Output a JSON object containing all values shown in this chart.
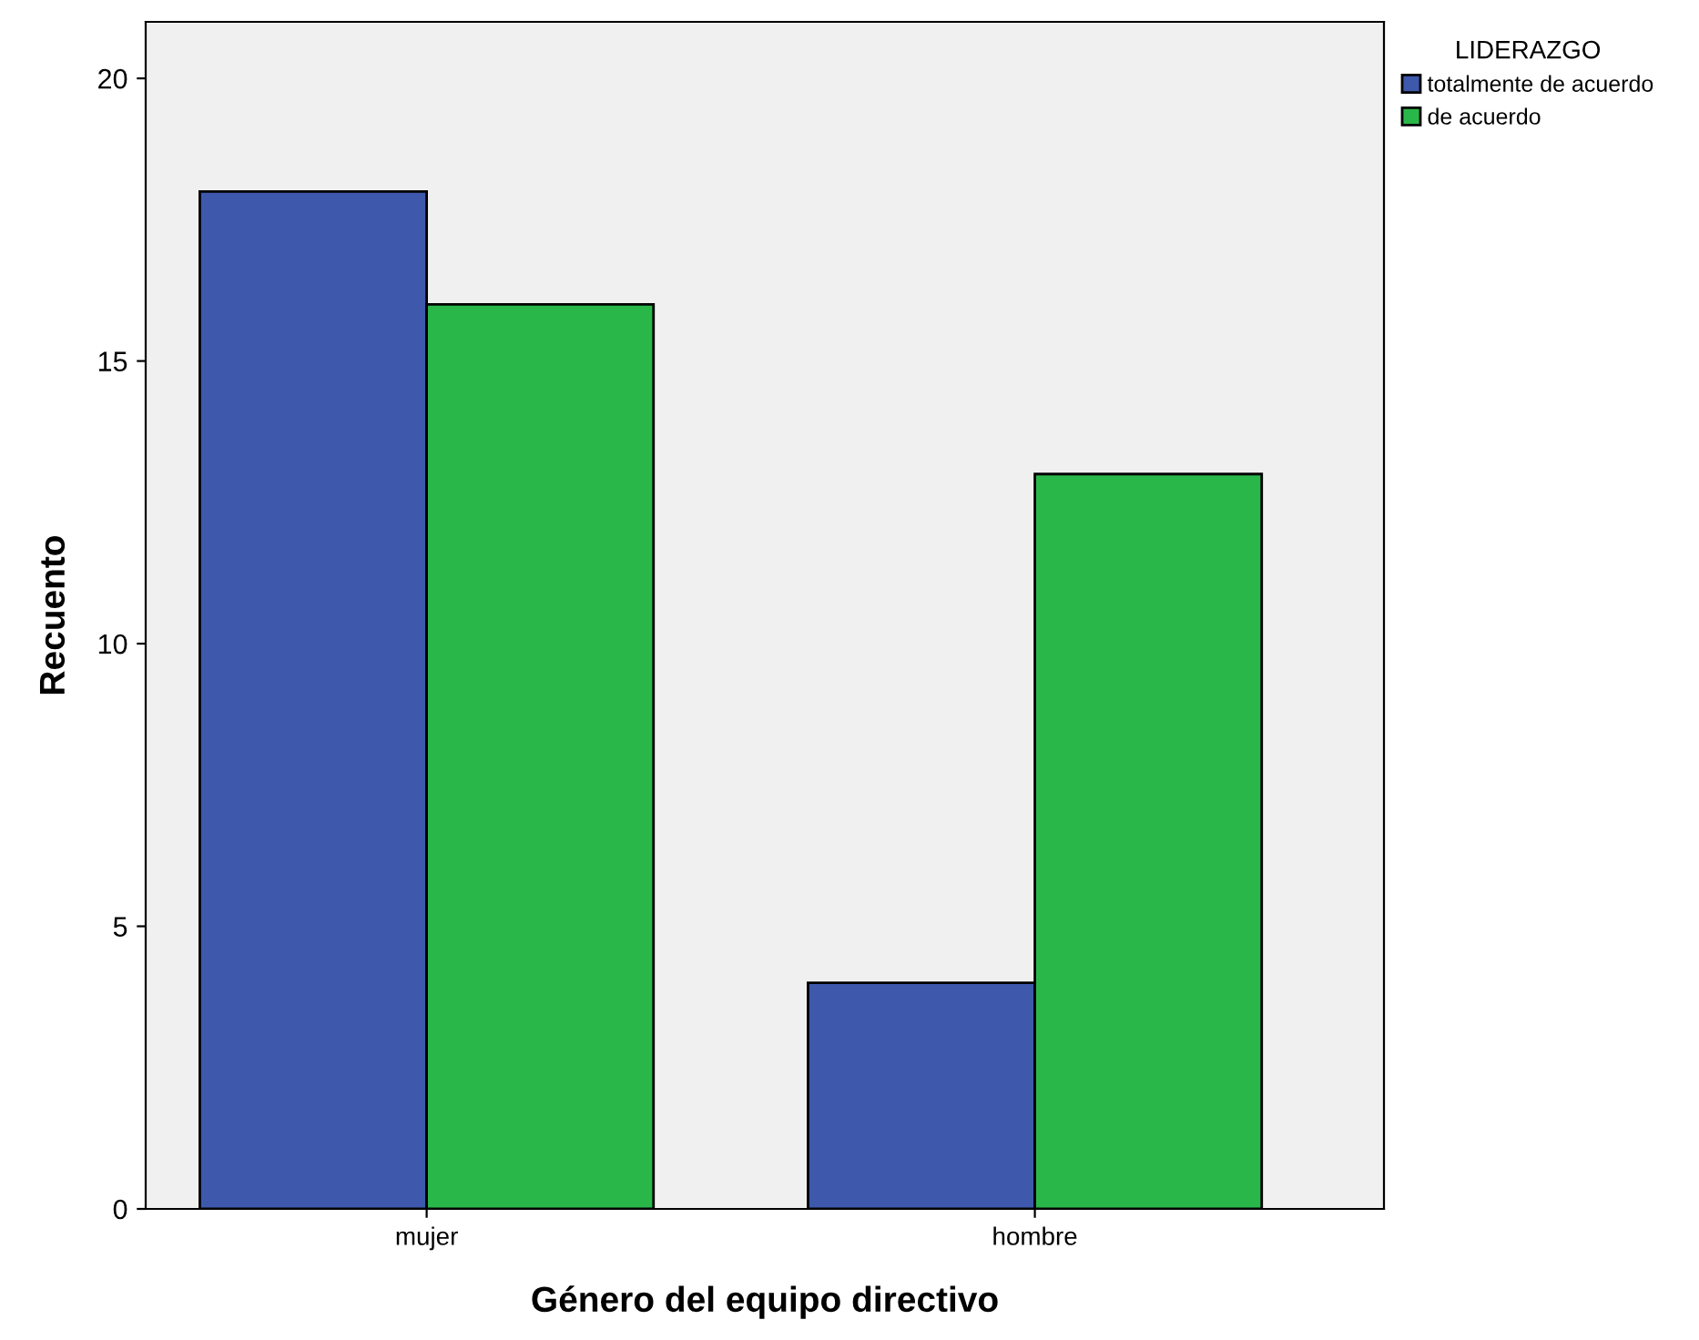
{
  "chart_data": {
    "type": "bar",
    "xlabel": "Género del equipo directivo",
    "ylabel": "Recuento",
    "legend_title": "LIDERAZGO",
    "categories": [
      "mujer",
      "hombre"
    ],
    "series": [
      {
        "name": "totalmente de acuerdo",
        "color": "#3e58ac",
        "values": [
          18,
          4
        ]
      },
      {
        "name": "de acuerdo",
        "color": "#2ab74a",
        "values": [
          16,
          13
        ]
      }
    ],
    "ylim": [
      0,
      21
    ],
    "yticks": [
      0,
      5,
      10,
      15,
      20
    ],
    "grid": false,
    "legend": "top right"
  }
}
